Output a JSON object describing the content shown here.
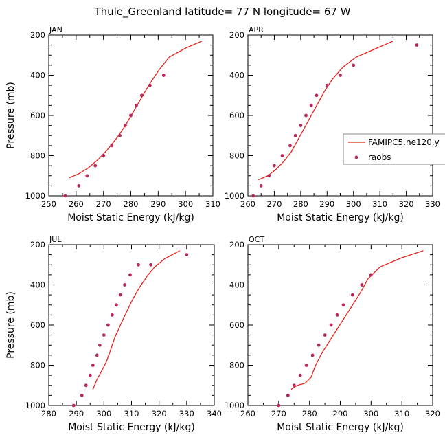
{
  "figure": {
    "title": "Thule_Greenland  latitude= 77 N longitude= 67 W"
  },
  "colors": {
    "model_line": "#e8201a",
    "obs_dots": "#b8285a",
    "axes": "#000000"
  },
  "legend": {
    "model_label": "FAMIPC5.ne120.y",
    "obs_label": "raobs",
    "placement": "right, APR panel"
  },
  "chart_data": [
    {
      "panel": "JAN",
      "type": "line+scatter",
      "xlabel": "Moist Static Energy (kJ/kg)",
      "ylabel": "Pressure (mb)",
      "xlim": [
        250,
        310
      ],
      "ylim": [
        1000,
        200
      ],
      "xticks": [
        250,
        260,
        270,
        280,
        290,
        300,
        310
      ],
      "yticks": [
        200,
        400,
        600,
        800,
        1000
      ],
      "series": [
        {
          "name": "FAMIPC5.ne120.y",
          "kind": "line",
          "x": [
            257.5,
            261,
            264.5,
            268,
            271.5,
            275,
            278,
            281,
            284,
            287,
            290.5,
            294,
            300,
            306
          ],
          "y": [
            910,
            890,
            860,
            820,
            770,
            710,
            650,
            580,
            510,
            440,
            370,
            310,
            265,
            230
          ]
        },
        {
          "name": "raobs",
          "kind": "scatter",
          "x": [
            256,
            261,
            264,
            267,
            270,
            273,
            276,
            278,
            280,
            282,
            284,
            287,
            292
          ],
          "y": [
            1000,
            950,
            900,
            850,
            800,
            750,
            700,
            650,
            600,
            550,
            500,
            450,
            400
          ]
        }
      ]
    },
    {
      "panel": "APR",
      "type": "line+scatter",
      "xlabel": "Moist Static Energy (kJ/kg)",
      "ylabel": "",
      "xlim": [
        260,
        330
      ],
      "ylim": [
        1000,
        200
      ],
      "xticks": [
        260,
        270,
        280,
        290,
        300,
        310,
        320,
        330
      ],
      "yticks": [
        200,
        400,
        600,
        800,
        1000
      ],
      "series": [
        {
          "name": "FAMIPC5.ne120.y",
          "kind": "line",
          "x": [
            264,
            267.5,
            270.5,
            273.5,
            276.5,
            279,
            281.5,
            284,
            286.5,
            289,
            292,
            296,
            301,
            308,
            315
          ],
          "y": [
            920,
            900,
            870,
            830,
            780,
            720,
            660,
            600,
            540,
            480,
            420,
            360,
            310,
            270,
            230
          ]
        },
        {
          "name": "raobs",
          "kind": "scatter",
          "x": [
            262,
            265,
            268,
            270,
            273,
            276,
            278,
            280,
            282,
            284,
            286,
            290,
            295,
            300,
            324
          ],
          "y": [
            1000,
            950,
            900,
            850,
            800,
            750,
            700,
            650,
            600,
            550,
            500,
            450,
            400,
            350,
            250
          ]
        }
      ]
    },
    {
      "panel": "JUL",
      "type": "line+scatter",
      "xlabel": "Moist Static Energy (kJ/kg)",
      "ylabel": "Pressure (mb)",
      "xlim": [
        280,
        340
      ],
      "ylim": [
        1000,
        200
      ],
      "xticks": [
        280,
        290,
        300,
        310,
        320,
        330,
        340
      ],
      "yticks": [
        200,
        400,
        600,
        800,
        1000
      ],
      "series": [
        {
          "name": "FAMIPC5.ne120.y",
          "kind": "line",
          "x": [
            296,
            297.5,
            299.5,
            301,
            302.5,
            304,
            306,
            308,
            310.5,
            313,
            316,
            318.5,
            322,
            327.5
          ],
          "y": [
            920,
            870,
            820,
            780,
            720,
            660,
            600,
            540,
            470,
            410,
            350,
            310,
            270,
            230
          ]
        },
        {
          "name": "raobs",
          "kind": "scatter",
          "x": [
            289,
            292,
            293.5,
            295,
            296,
            297.5,
            298.5,
            300,
            301.5,
            303,
            304.5,
            306,
            307.5,
            309.5,
            312.5,
            317,
            330
          ],
          "y": [
            1000,
            950,
            900,
            850,
            800,
            750,
            700,
            650,
            600,
            550,
            500,
            450,
            400,
            350,
            300,
            300,
            250
          ]
        }
      ]
    },
    {
      "panel": "OCT",
      "type": "line+scatter",
      "xlabel": "Moist Static Energy (kJ/kg)",
      "ylabel": "",
      "xlim": [
        260,
        320
      ],
      "ylim": [
        1000,
        200
      ],
      "xticks": [
        260,
        270,
        280,
        290,
        300,
        310,
        320
      ],
      "yticks": [
        200,
        400,
        600,
        800,
        1000
      ],
      "series": [
        {
          "name": "FAMIPC5.ne120.y",
          "kind": "line",
          "x": [
            274,
            276,
            278.5,
            280.5,
            282,
            284,
            286.5,
            289,
            291.5,
            294,
            296.5,
            299,
            303,
            310,
            317
          ],
          "y": [
            920,
            900,
            890,
            860,
            800,
            740,
            680,
            620,
            560,
            500,
            440,
            370,
            310,
            265,
            230
          ]
        },
        {
          "name": "raobs",
          "kind": "scatter",
          "x": [
            270,
            273,
            275,
            277,
            279,
            281,
            283,
            285,
            287,
            289,
            291,
            294,
            297,
            300
          ],
          "y": [
            1000,
            950,
            900,
            850,
            800,
            750,
            700,
            650,
            600,
            550,
            500,
            450,
            400,
            350
          ]
        }
      ]
    }
  ]
}
